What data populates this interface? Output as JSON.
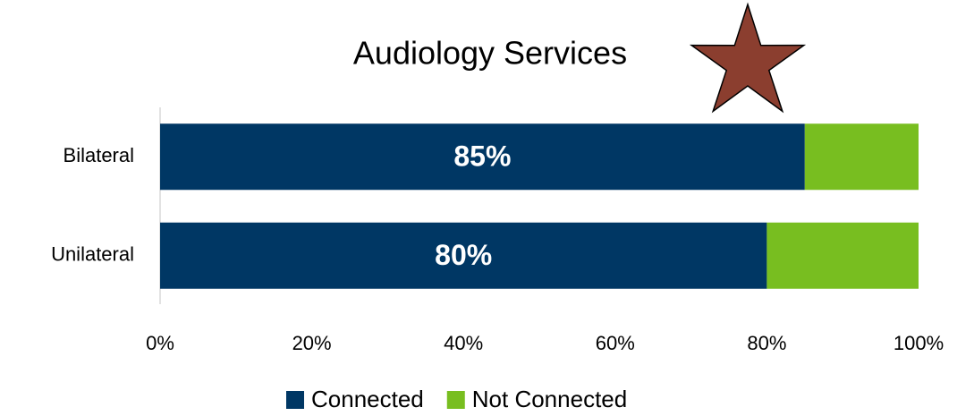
{
  "chart_data": {
    "type": "stacked_barh",
    "title": "Audiology Services",
    "categories": [
      "Bilateral",
      "Unilateral"
    ],
    "series": [
      {
        "name": "Connected",
        "color": "#003764",
        "values": [
          85,
          80
        ],
        "value_labels": [
          "85%",
          "80%"
        ]
      },
      {
        "name": "Not Connected",
        "color": "#78be20",
        "values": [
          15,
          20
        ]
      }
    ],
    "xlim": [
      0,
      100
    ],
    "xticks": [
      {
        "value": 0,
        "label": "0%"
      },
      {
        "value": 20,
        "label": "20%"
      },
      {
        "value": 40,
        "label": "40%"
      },
      {
        "value": 60,
        "label": "60%"
      },
      {
        "value": 80,
        "label": "80%"
      },
      {
        "value": 100,
        "label": "100%"
      }
    ],
    "legend": "bottom"
  }
}
